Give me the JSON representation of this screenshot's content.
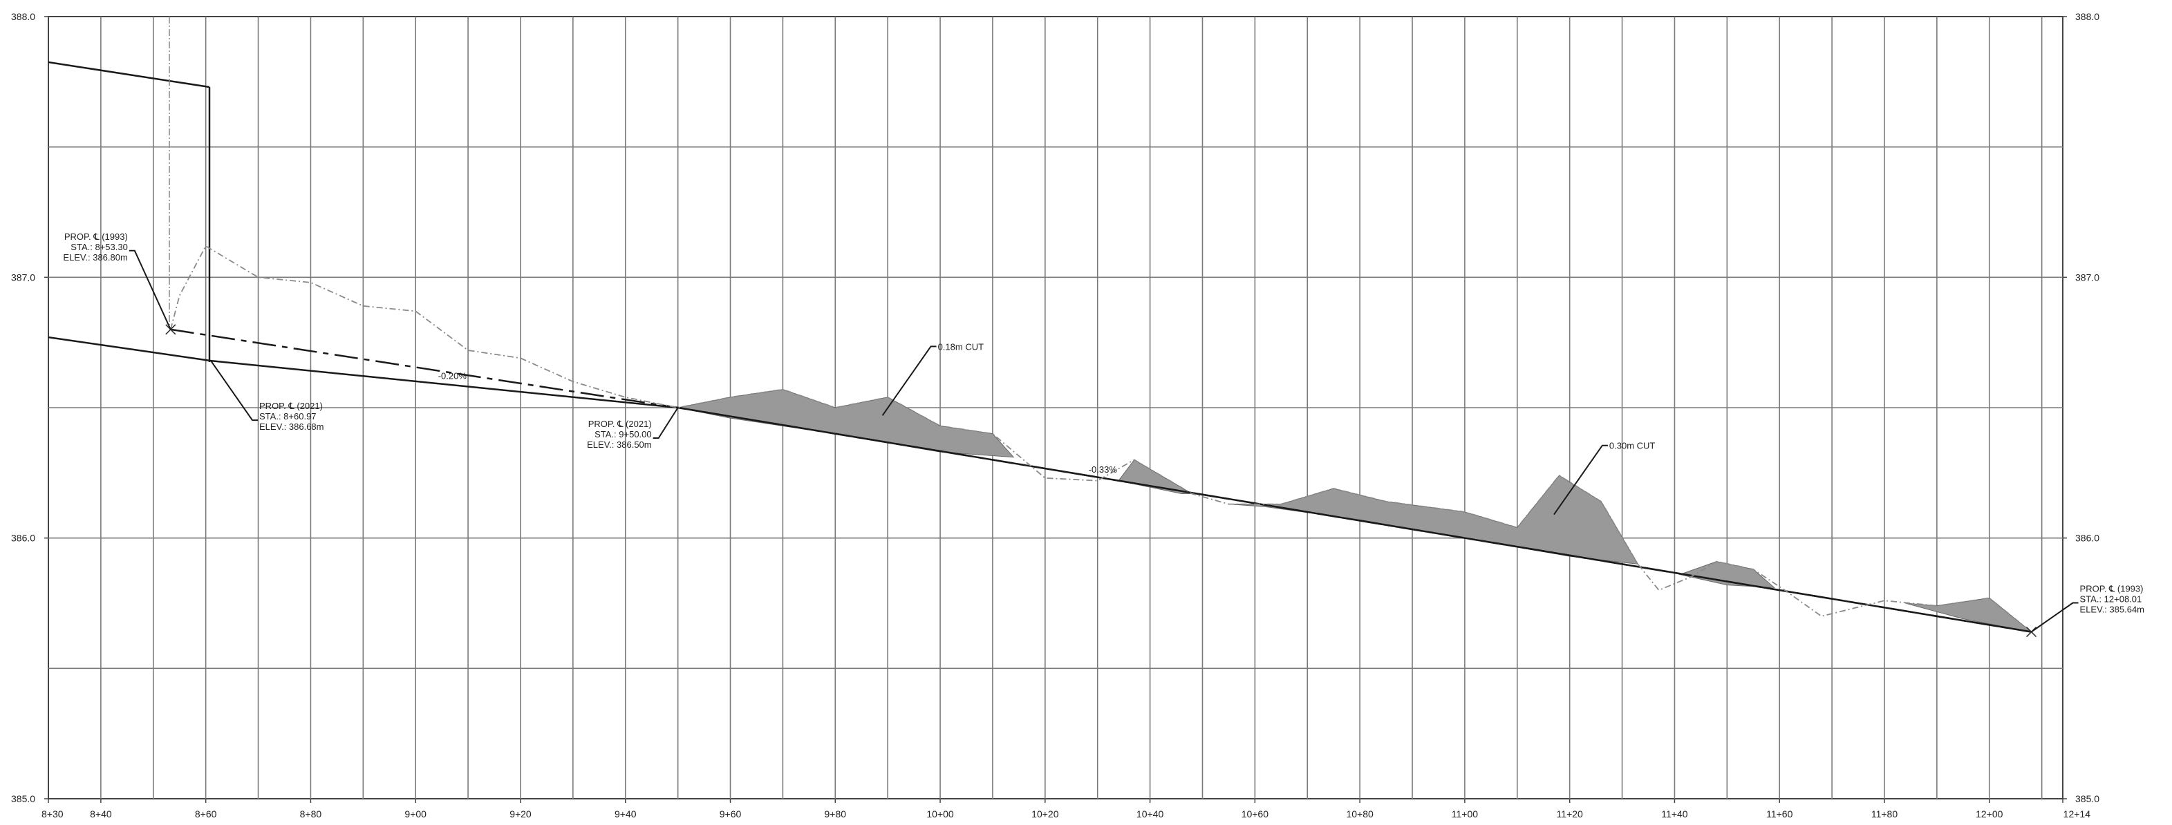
{
  "chart_data": {
    "type": "line",
    "xlim": [
      830,
      1214
    ],
    "ylim": [
      385.0,
      388.0
    ],
    "x_ticks": [
      {
        "value": 830,
        "label": "8+30"
      },
      {
        "value": 840,
        "label": "8+40"
      },
      {
        "value": 860,
        "label": "8+60"
      },
      {
        "value": 880,
        "label": "8+80"
      },
      {
        "value": 900,
        "label": "9+00"
      },
      {
        "value": 920,
        "label": "9+20"
      },
      {
        "value": 940,
        "label": "9+40"
      },
      {
        "value": 960,
        "label": "9+60"
      },
      {
        "value": 980,
        "label": "9+80"
      },
      {
        "value": 1000,
        "label": "10+00"
      },
      {
        "value": 1020,
        "label": "10+20"
      },
      {
        "value": 1040,
        "label": "10+40"
      },
      {
        "value": 1060,
        "label": "10+60"
      },
      {
        "value": 1080,
        "label": "10+80"
      },
      {
        "value": 1100,
        "label": "11+00"
      },
      {
        "value": 1120,
        "label": "11+20"
      },
      {
        "value": 1140,
        "label": "11+40"
      },
      {
        "value": 1160,
        "label": "11+60"
      },
      {
        "value": 1180,
        "label": "11+80"
      },
      {
        "value": 1200,
        "label": "12+00"
      },
      {
        "value": 1214,
        "label": "12+14"
      }
    ],
    "y_ticks": [
      {
        "value": 385.0,
        "label": "385.0"
      },
      {
        "value": 386.0,
        "label": "386.0"
      },
      {
        "value": 387.0,
        "label": "387.0"
      },
      {
        "value": 388.0,
        "label": "388.0"
      }
    ],
    "grid_x": [
      840,
      850,
      860,
      870,
      880,
      890,
      900,
      910,
      920,
      930,
      940,
      950,
      960,
      970,
      980,
      990,
      1000,
      1010,
      1020,
      1030,
      1040,
      1050,
      1060,
      1070,
      1080,
      1090,
      1100,
      1110,
      1120,
      1130,
      1140,
      1150,
      1160,
      1170,
      1180,
      1190,
      1200,
      1210
    ],
    "grid_y": [
      385.5,
      386.0,
      386.5,
      387.0,
      387.5
    ],
    "series": [
      {
        "role": "proposed-1993",
        "style": "dashed",
        "color": "#1a1a1a",
        "points": [
          [
            853.3,
            386.8
          ],
          [
            950,
            386.5
          ],
          [
            1208.01,
            385.64
          ]
        ]
      },
      {
        "role": "proposed-2021",
        "style": "solid",
        "color": "#1a1a1a",
        "points": [
          [
            830,
            386.77
          ],
          [
            860.97,
            386.68
          ],
          [
            950,
            386.5
          ],
          [
            1208.01,
            385.64
          ]
        ]
      },
      {
        "role": "existing-ground",
        "style": "dash-dot",
        "color": "#8a8a8a",
        "points": [
          [
            853.3,
            386.8
          ],
          [
            855,
            386.93
          ],
          [
            860,
            387.12
          ],
          [
            870,
            387.0
          ],
          [
            880,
            386.98
          ],
          [
            890,
            386.89
          ],
          [
            900,
            386.87
          ],
          [
            910,
            386.72
          ],
          [
            920,
            386.69
          ],
          [
            930,
            386.6
          ],
          [
            940,
            386.54
          ],
          [
            950,
            386.5
          ],
          [
            960,
            386.54
          ],
          [
            970,
            386.57
          ],
          [
            980,
            386.5
          ],
          [
            990,
            386.54
          ],
          [
            1000,
            386.43
          ],
          [
            1010,
            386.4
          ],
          [
            1020,
            386.23
          ],
          [
            1030,
            386.22
          ],
          [
            1037,
            386.3
          ],
          [
            1048,
            386.17
          ],
          [
            1055,
            386.13
          ],
          [
            1065,
            386.13
          ],
          [
            1075,
            386.19
          ],
          [
            1085,
            386.14
          ],
          [
            1100,
            386.1
          ],
          [
            1110,
            386.04
          ],
          [
            1118,
            386.24
          ],
          [
            1126,
            386.14
          ],
          [
            1133,
            385.9
          ],
          [
            1137,
            385.8
          ],
          [
            1143,
            385.85
          ],
          [
            1148,
            385.91
          ],
          [
            1155,
            385.88
          ],
          [
            1161,
            385.8
          ],
          [
            1168,
            385.7
          ],
          [
            1180,
            385.76
          ],
          [
            1190,
            385.74
          ],
          [
            1200,
            385.77
          ],
          [
            1208.01,
            385.64
          ]
        ]
      }
    ],
    "cut_fill": {
      "color": "#999999",
      "regions": [
        [
          [
            950,
            386.5
          ],
          [
            960,
            386.54
          ],
          [
            970,
            386.57
          ],
          [
            980,
            386.5
          ],
          [
            990,
            386.54
          ],
          [
            1000,
            386.43
          ],
          [
            1010,
            386.4
          ],
          [
            1014,
            386.31
          ],
          [
            1000,
            386.33
          ],
          [
            980,
            386.4
          ],
          [
            960,
            386.46
          ]
        ],
        [
          [
            1034,
            386.22
          ],
          [
            1037,
            386.3
          ],
          [
            1048,
            386.17
          ],
          [
            1046,
            386.17
          ]
        ],
        [
          [
            1055,
            386.13
          ],
          [
            1065,
            386.13
          ],
          [
            1075,
            386.19
          ],
          [
            1085,
            386.14
          ],
          [
            1100,
            386.1
          ],
          [
            1110,
            386.04
          ],
          [
            1118,
            386.24
          ],
          [
            1126,
            386.14
          ],
          [
            1133,
            385.9
          ],
          [
            1120,
            385.93
          ],
          [
            1100,
            386.0
          ],
          [
            1080,
            386.07
          ],
          [
            1062,
            386.12
          ]
        ],
        [
          [
            1141,
            385.86
          ],
          [
            1148,
            385.91
          ],
          [
            1155,
            385.88
          ],
          [
            1159,
            385.81
          ],
          [
            1150,
            385.82
          ]
        ],
        [
          [
            1184,
            385.75
          ],
          [
            1190,
            385.74
          ],
          [
            1200,
            385.77
          ],
          [
            1208.01,
            385.64
          ],
          [
            1195,
            385.69
          ]
        ]
      ]
    },
    "annotations": [
      {
        "lines": [
          "PROP. ℄ (1993)",
          "STA.: 8+53.30",
          "ELEV.: 386.80m"
        ],
        "anchor": [
          853.3,
          386.8
        ],
        "side": "left"
      },
      {
        "lines": [
          "PROP. ℄ (2021)",
          "STA.: 8+60.97",
          "ELEV.: 386.68m"
        ],
        "anchor": [
          860.97,
          386.68
        ],
        "side": "right"
      },
      {
        "lines": [
          "PROP. ℄ (2021)",
          "STA.: 9+50.00",
          "ELEV.: 386.50m"
        ],
        "anchor": [
          950,
          386.5
        ],
        "side": "left"
      },
      {
        "lines": [
          "PROP. ℄ (1993)",
          "STA.: 12+08.01",
          "ELEV.: 385.64m"
        ],
        "anchor": [
          1208.01,
          385.64
        ],
        "side": "right"
      },
      {
        "lines": [
          "0.18m CUT"
        ],
        "anchor": [
          989,
          386.47
        ],
        "side": "right"
      },
      {
        "lines": [
          "0.30m CUT"
        ],
        "anchor": [
          1117,
          386.09
        ],
        "side": "right"
      },
      {
        "lines": [
          "-0.20%"
        ],
        "anchor": [
          907,
          386.6
        ],
        "side": "label"
      },
      {
        "lines": [
          "-0.33%"
        ],
        "anchor": [
          1031,
          386.24
        ],
        "side": "label"
      }
    ],
    "legend": "none",
    "grid": true
  }
}
